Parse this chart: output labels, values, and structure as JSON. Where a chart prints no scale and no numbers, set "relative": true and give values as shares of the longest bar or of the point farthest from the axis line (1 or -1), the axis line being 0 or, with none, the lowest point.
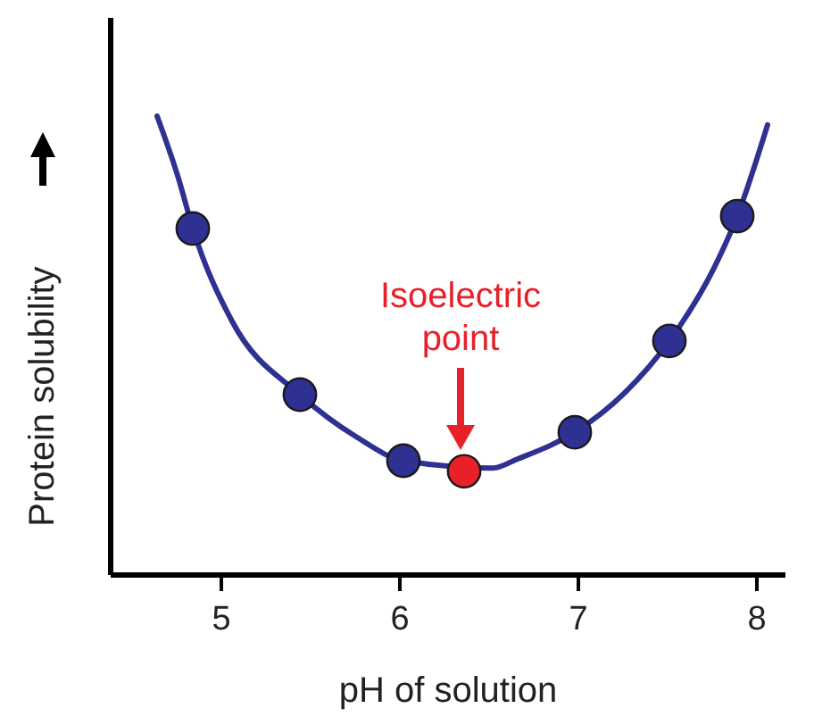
{
  "chart_data": {
    "type": "line",
    "relative": true,
    "xlabel": "pH of solution",
    "ylabel": "Protein solubility",
    "xlim": [
      4.38,
      8.16
    ],
    "xticks": [
      5,
      6,
      7,
      8
    ],
    "tick_labels": "x",
    "grid": false,
    "series": [
      {
        "color": "#2e3192",
        "marker": "none",
        "x": [
          4.64,
          4.76,
          4.84,
          5.06,
          5.44,
          5.76,
          6.02,
          6.52,
          6.66,
          6.98,
          7.26,
          7.51,
          7.76,
          7.89,
          8.06
        ],
        "values": [
          1.0,
          0.864,
          0.755,
          0.553,
          0.393,
          0.3,
          0.249,
          0.233,
          0.253,
          0.311,
          0.397,
          0.51,
          0.669,
          0.782,
          0.981
        ]
      },
      {
        "type": "scatter",
        "color": "#2e3192",
        "marker": "circle",
        "x": [
          4.84,
          5.44,
          6.02,
          6.98,
          7.51,
          7.89
        ],
        "values": [
          0.755,
          0.393,
          0.249,
          0.311,
          0.51,
          0.782
        ]
      },
      {
        "type": "scatter",
        "color": "#e8202a",
        "marker": "circle",
        "x": [
          6.36
        ],
        "values": [
          0.226
        ]
      }
    ],
    "annotations": [
      "Isoelectric point"
    ]
  }
}
